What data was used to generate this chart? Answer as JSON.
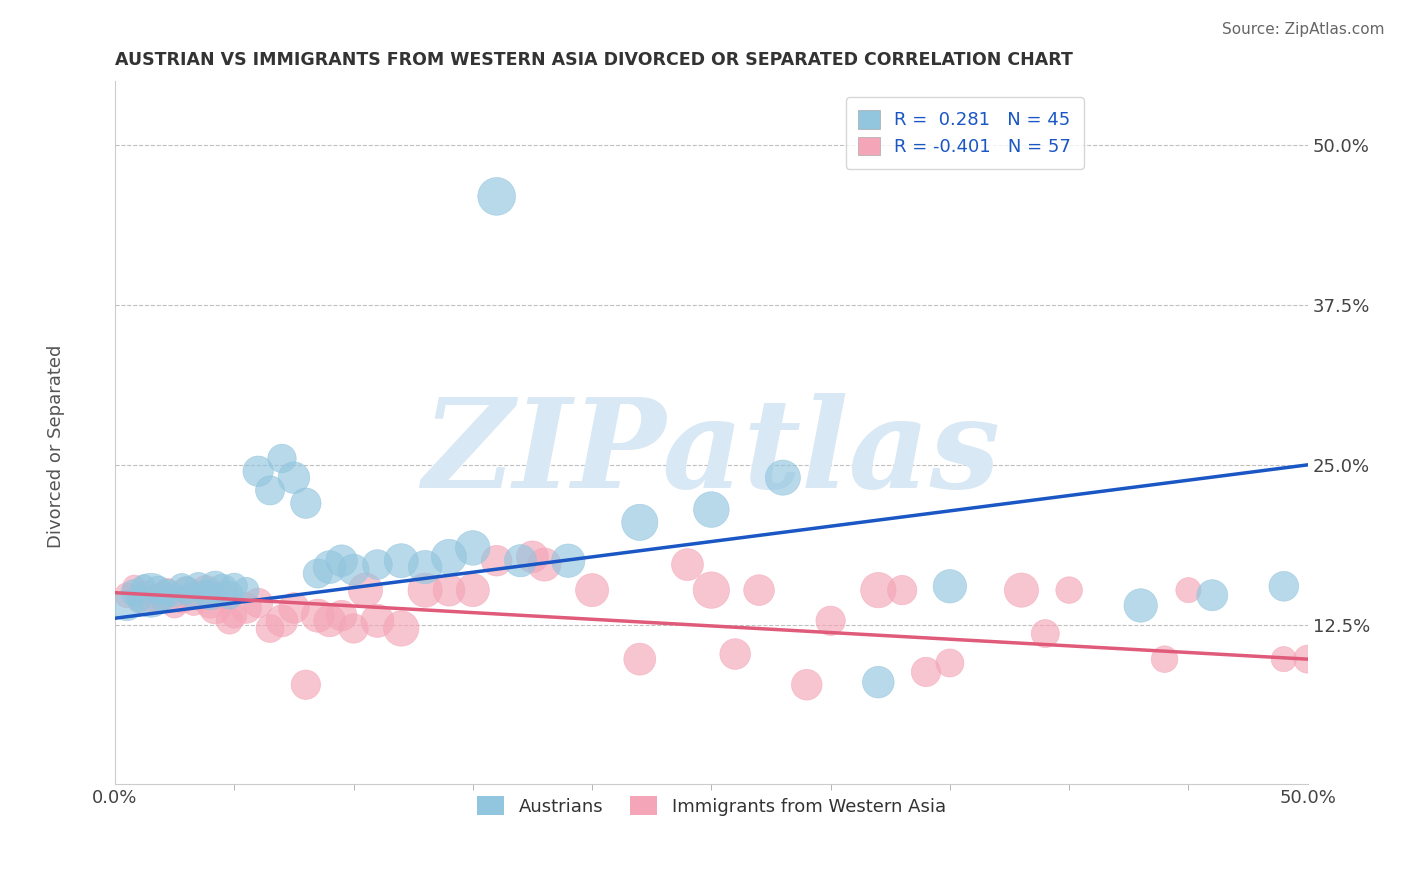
{
  "title": "AUSTRIAN VS IMMIGRANTS FROM WESTERN ASIA DIVORCED OR SEPARATED CORRELATION CHART",
  "source": "Source: ZipAtlas.com",
  "ylabel": "Divorced or Separated",
  "ytick_labels": [
    "12.5%",
    "25.0%",
    "37.5%",
    "50.0%"
  ],
  "ytick_values": [
    0.125,
    0.25,
    0.375,
    0.5
  ],
  "xlim": [
    0.0,
    0.5
  ],
  "ylim": [
    0.0,
    0.55
  ],
  "legend_blue_label": "R =  0.281   N = 45",
  "legend_pink_label": "R = -0.401   N = 57",
  "legend_austrians": "Austrians",
  "legend_immigrants": "Immigrants from Western Asia",
  "blue_color": "#92c5de",
  "pink_color": "#f4a6b8",
  "blue_line_color": "#1a56c4",
  "pink_line_color": "#e05a7a",
  "watermark": "ZIPatlas",
  "watermark_color": "#d8e8f5",
  "blue_line_x": [
    0.0,
    0.5
  ],
  "blue_line_y": [
    0.13,
    0.25
  ],
  "pink_line_x": [
    0.0,
    0.5
  ],
  "pink_line_y": [
    0.15,
    0.098
  ],
  "blue_scatter_x": [
    0.005,
    0.008,
    0.01,
    0.012,
    0.015,
    0.018,
    0.02,
    0.022,
    0.025,
    0.028,
    0.03,
    0.032,
    0.035,
    0.038,
    0.04,
    0.042,
    0.045,
    0.048,
    0.05,
    0.055,
    0.06,
    0.065,
    0.07,
    0.075,
    0.08,
    0.085,
    0.09,
    0.095,
    0.1,
    0.11,
    0.12,
    0.13,
    0.14,
    0.15,
    0.17,
    0.19,
    0.22,
    0.25,
    0.28,
    0.32,
    0.35,
    0.43,
    0.46,
    0.49,
    0.16
  ],
  "blue_scatter_y": [
    0.14,
    0.15,
    0.145,
    0.155,
    0.148,
    0.152,
    0.145,
    0.15,
    0.148,
    0.155,
    0.152,
    0.148,
    0.155,
    0.15,
    0.148,
    0.155,
    0.152,
    0.148,
    0.155,
    0.152,
    0.245,
    0.23,
    0.255,
    0.24,
    0.22,
    0.165,
    0.17,
    0.175,
    0.168,
    0.172,
    0.175,
    0.17,
    0.178,
    0.185,
    0.175,
    0.175,
    0.205,
    0.215,
    0.24,
    0.08,
    0.155,
    0.14,
    0.148,
    0.155,
    0.46
  ],
  "blue_scatter_size": [
    120,
    90,
    80,
    70,
    250,
    100,
    80,
    90,
    70,
    85,
    95,
    80,
    100,
    90,
    110,
    120,
    130,
    100,
    90,
    85,
    120,
    110,
    105,
    130,
    120,
    110,
    140,
    130,
    125,
    115,
    150,
    145,
    160,
    155,
    135,
    145,
    170,
    165,
    160,
    130,
    145,
    145,
    125,
    115,
    185
  ],
  "pink_scatter_x": [
    0.005,
    0.008,
    0.01,
    0.013,
    0.015,
    0.018,
    0.02,
    0.022,
    0.025,
    0.028,
    0.03,
    0.033,
    0.035,
    0.038,
    0.04,
    0.042,
    0.045,
    0.048,
    0.05,
    0.055,
    0.06,
    0.065,
    0.07,
    0.075,
    0.08,
    0.085,
    0.09,
    0.095,
    0.1,
    0.105,
    0.11,
    0.12,
    0.13,
    0.14,
    0.15,
    0.16,
    0.175,
    0.2,
    0.22,
    0.26,
    0.3,
    0.35,
    0.4,
    0.45,
    0.5,
    0.25,
    0.32,
    0.38,
    0.18,
    0.24,
    0.29,
    0.34,
    0.39,
    0.44,
    0.49,
    0.27,
    0.33
  ],
  "pink_scatter_y": [
    0.148,
    0.155,
    0.142,
    0.15,
    0.145,
    0.142,
    0.148,
    0.152,
    0.14,
    0.145,
    0.152,
    0.142,
    0.148,
    0.152,
    0.142,
    0.138,
    0.148,
    0.128,
    0.132,
    0.138,
    0.142,
    0.122,
    0.128,
    0.138,
    0.078,
    0.132,
    0.128,
    0.132,
    0.122,
    0.152,
    0.128,
    0.122,
    0.152,
    0.152,
    0.152,
    0.175,
    0.178,
    0.152,
    0.098,
    0.102,
    0.128,
    0.095,
    0.152,
    0.152,
    0.098,
    0.152,
    0.152,
    0.152,
    0.172,
    0.172,
    0.078,
    0.088,
    0.118,
    0.098,
    0.098,
    0.152,
    0.152
  ],
  "pink_scatter_size": [
    80,
    65,
    55,
    72,
    85,
    62,
    92,
    72,
    82,
    102,
    92,
    82,
    102,
    112,
    122,
    132,
    102,
    92,
    82,
    122,
    112,
    102,
    132,
    122,
    112,
    142,
    132,
    122,
    112,
    152,
    142,
    162,
    152,
    132,
    142,
    122,
    132,
    142,
    132,
    122,
    112,
    102,
    92,
    82,
    102,
    172,
    162,
    152,
    142,
    132,
    122,
    112,
    102,
    92,
    82,
    122,
    112
  ]
}
